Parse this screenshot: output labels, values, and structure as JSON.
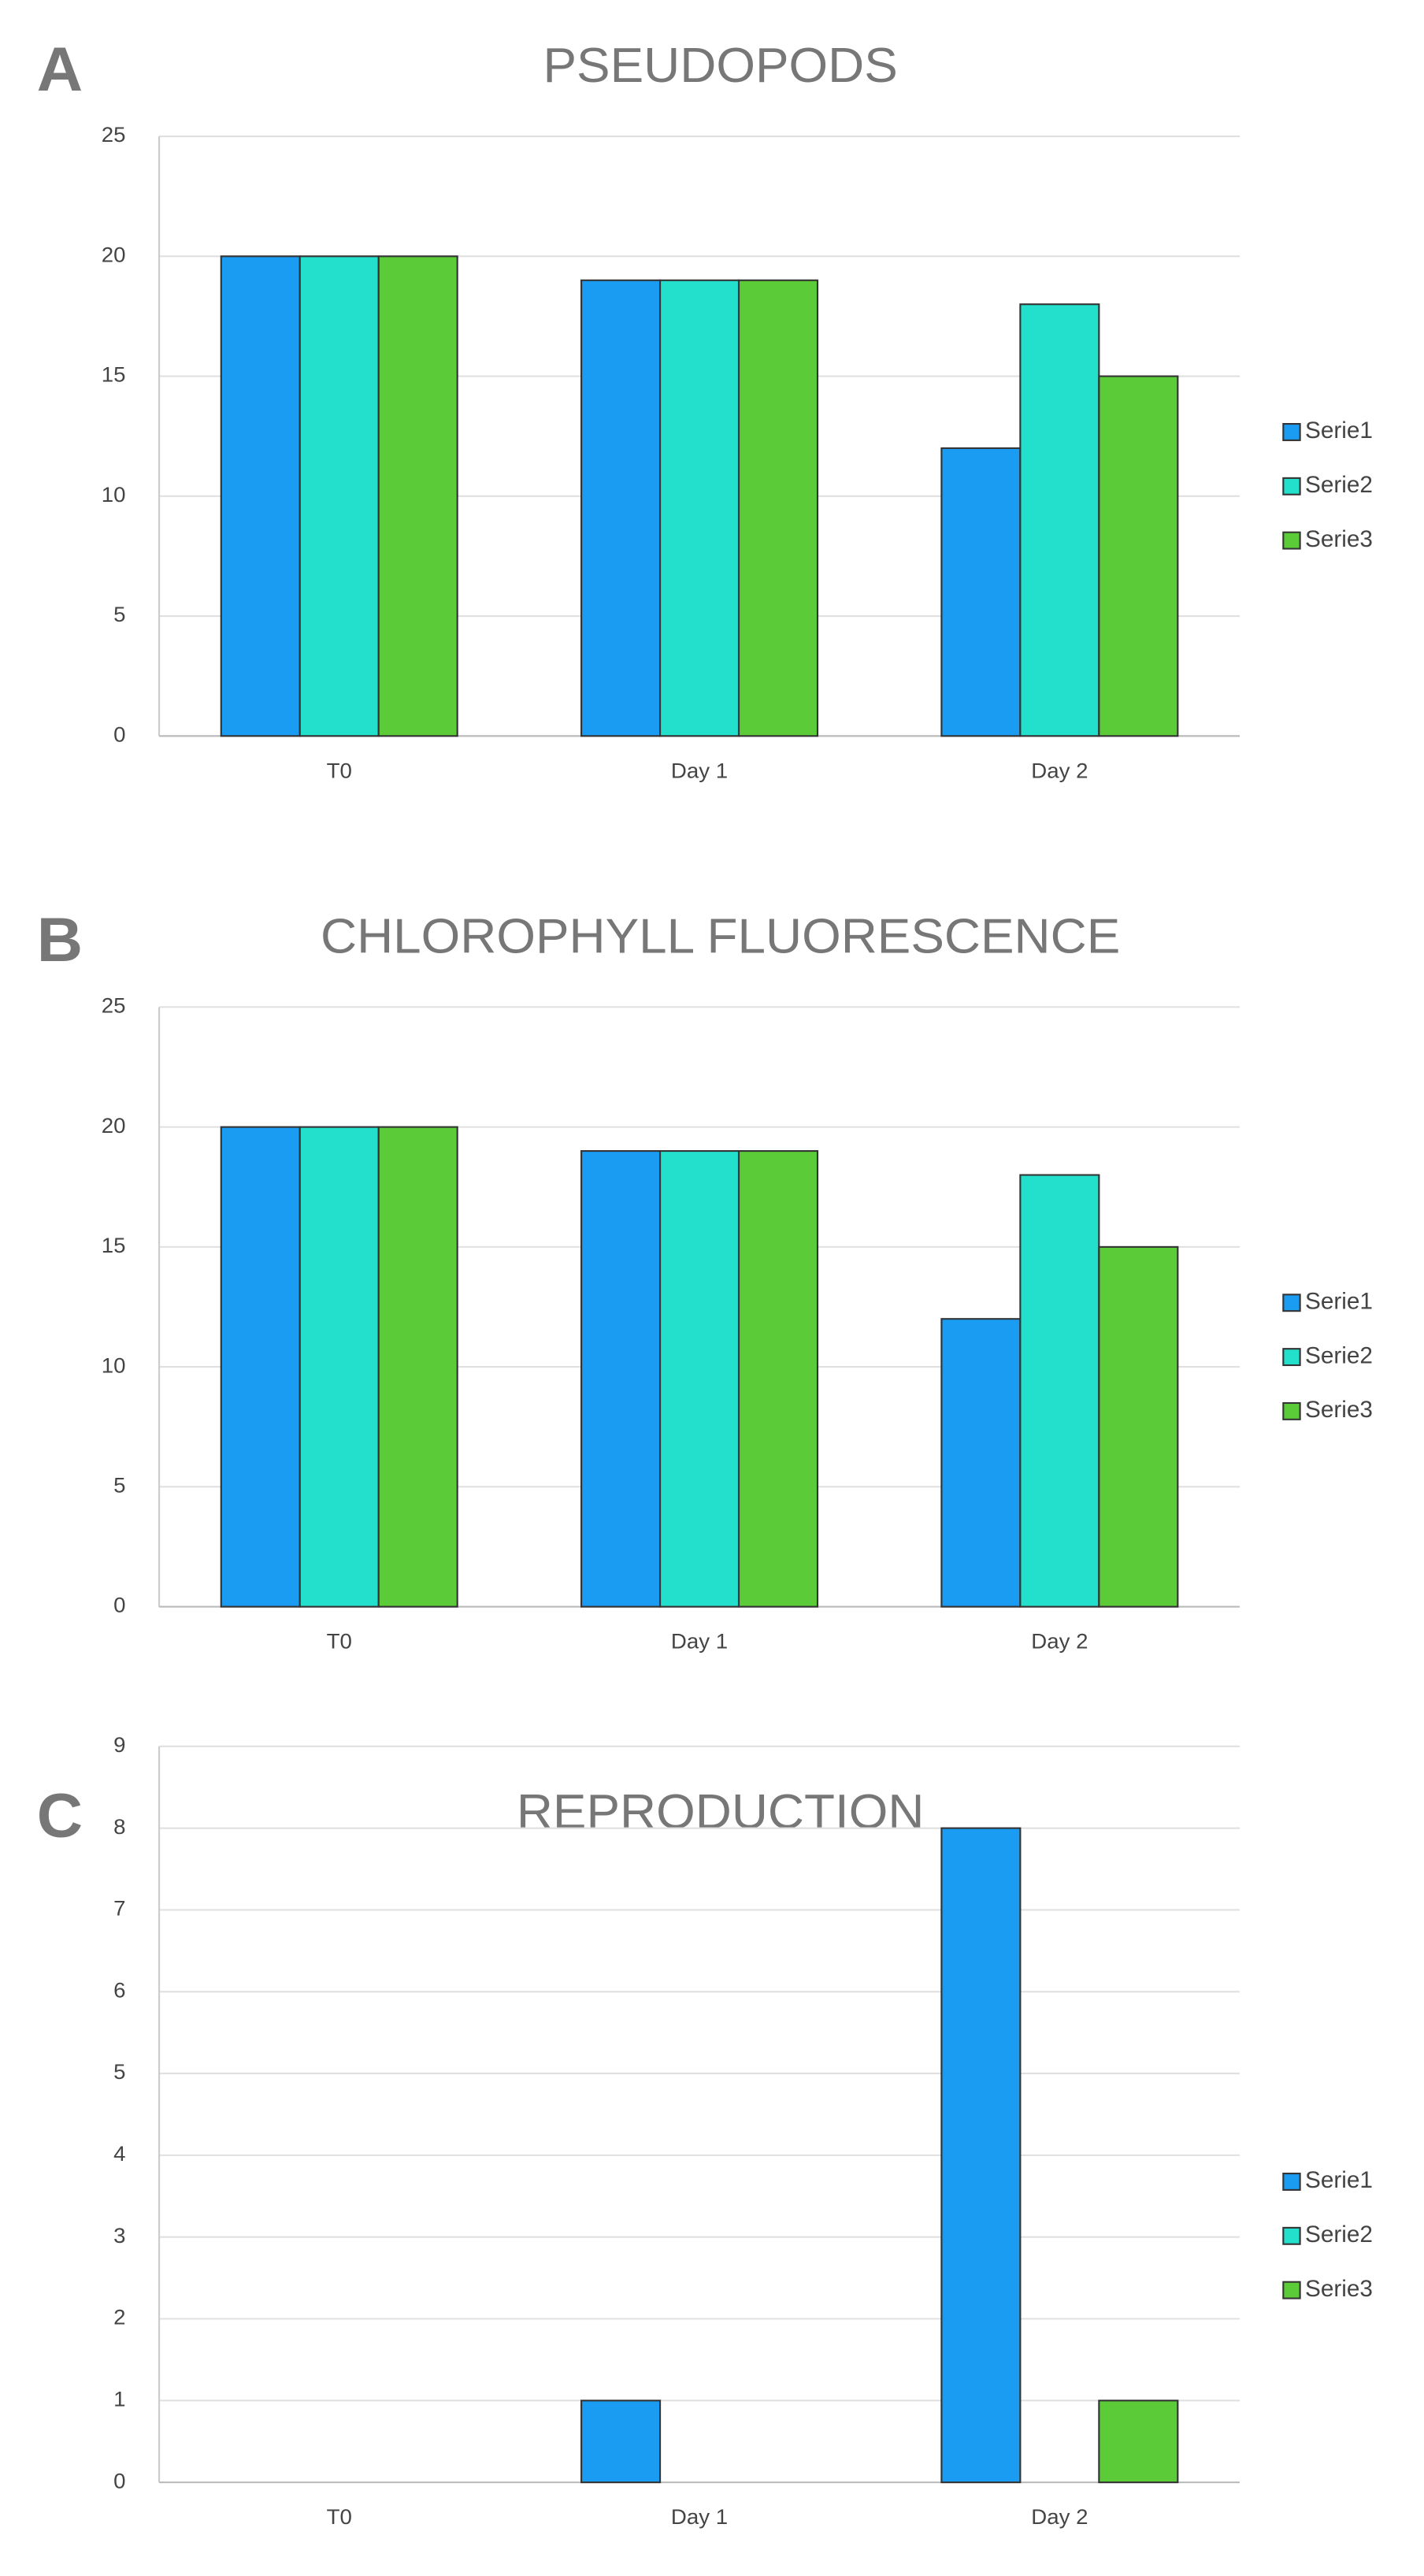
{
  "chart_data": [
    {
      "type": "bar",
      "panel": "A",
      "title": "PSEUDOPODS",
      "categories": [
        "T0",
        "Day 1",
        "Day 2"
      ],
      "series": [
        {
          "name": "Serie1",
          "color": "#1a9cf2",
          "values": [
            20,
            19,
            12
          ]
        },
        {
          "name": "Serie2",
          "color": "#22e0cc",
          "values": [
            20,
            19,
            18
          ]
        },
        {
          "name": "Serie3",
          "color": "#5ccb38",
          "values": [
            20,
            19,
            15
          ]
        }
      ],
      "ylim": [
        0,
        25
      ],
      "yticks": [
        0,
        5,
        10,
        15,
        20,
        25
      ],
      "grid": true,
      "legend": "right"
    },
    {
      "type": "bar",
      "panel": "B",
      "title": "CHLOROPHYLL FLUORESCENCE",
      "categories": [
        "T0",
        "Day 1",
        "Day 2"
      ],
      "series": [
        {
          "name": "Serie1",
          "color": "#1a9cf2",
          "values": [
            20,
            19,
            12
          ]
        },
        {
          "name": "Serie2",
          "color": "#22e0cc",
          "values": [
            20,
            19,
            18
          ]
        },
        {
          "name": "Serie3",
          "color": "#5ccb38",
          "values": [
            20,
            19,
            15
          ]
        }
      ],
      "ylim": [
        0,
        25
      ],
      "yticks": [
        0,
        5,
        10,
        15,
        20,
        25
      ],
      "grid": true,
      "legend": "right"
    },
    {
      "type": "bar",
      "panel": "C",
      "title": "REPRODUCTION",
      "categories": [
        "T0",
        "Day 1",
        "Day 2"
      ],
      "series": [
        {
          "name": "Serie1",
          "color": "#1a9cf2",
          "values": [
            0,
            1,
            8
          ]
        },
        {
          "name": "Serie2",
          "color": "#22e0cc",
          "values": [
            0,
            0,
            0
          ]
        },
        {
          "name": "Serie3",
          "color": "#5ccb38",
          "values": [
            0,
            0,
            1
          ]
        }
      ],
      "ylim": [
        0,
        9
      ],
      "yticks": [
        0,
        1,
        2,
        3,
        4,
        5,
        6,
        7,
        8,
        9
      ],
      "grid": true,
      "legend": "right"
    }
  ]
}
